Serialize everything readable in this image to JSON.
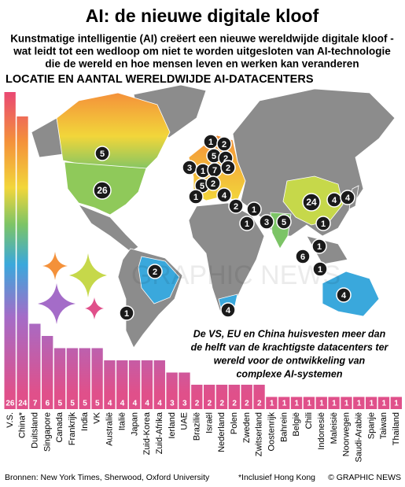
{
  "title": "AI: de nieuwe digitale kloof",
  "subtitle": [
    "Kunstmatige intelligentie (AI) creëert een nieuwe wereldwijde digitale kloof -",
    "wat leidt tot een wedloop om niet te worden uitgesloten van AI-technologie",
    "die de wereld en hoe mensen leven en werken kan veranderen"
  ],
  "section_title": "LOCATIE EN AANTAL WERELDWIJDE AI-DATACENTERS",
  "watermark": "GRAPHIC NEWS",
  "annotation": [
    "De VS, EU en China huisvesten meer dan",
    "de helft van de krachtigste datacenters ter",
    "wereld voor de ontwikkeling van",
    "complexe AI-systemen"
  ],
  "map_markers": [
    1,
    2,
    5,
    2,
    3,
    1,
    7,
    2,
    5,
    2,
    1,
    4,
    2,
    1,
    1,
    3,
    5,
    24,
    4,
    4,
    1,
    1,
    6,
    1,
    4,
    4,
    2,
    1,
    5,
    26
  ],
  "chart_data": {
    "type": "bar",
    "categories": [
      "V.S.",
      "China*",
      "Duitsland",
      "Singapore",
      "Canada",
      "Frankrijk",
      "India",
      "VK",
      "Australië",
      "Italië",
      "Japan",
      "Zuid-Korea",
      "Zuid-Afrika",
      "Ierland",
      "UAE",
      "Brazilië",
      "Israël",
      "Nederland",
      "Polen",
      "Zweden",
      "Zwitserland",
      "Oostenrijk",
      "Bahrein",
      "België",
      "Chili",
      "Indonesië",
      "Maleisië",
      "Noorwegen",
      "Saudi-Arabië",
      "Spanje",
      "Taiwan",
      "Thailand"
    ],
    "values": [
      26,
      24,
      7,
      6,
      5,
      5,
      5,
      5,
      4,
      4,
      4,
      4,
      4,
      3,
      3,
      2,
      2,
      2,
      2,
      2,
      2,
      1,
      1,
      1,
      1,
      1,
      1,
      1,
      1,
      1,
      1,
      1
    ],
    "color": "#e0508a"
  },
  "source": "Bronnen: New York Times, Sherwood, Oxford University",
  "footnote": "*Inclusief Hong Kong",
  "credit": "© GRAPHIC NEWS"
}
